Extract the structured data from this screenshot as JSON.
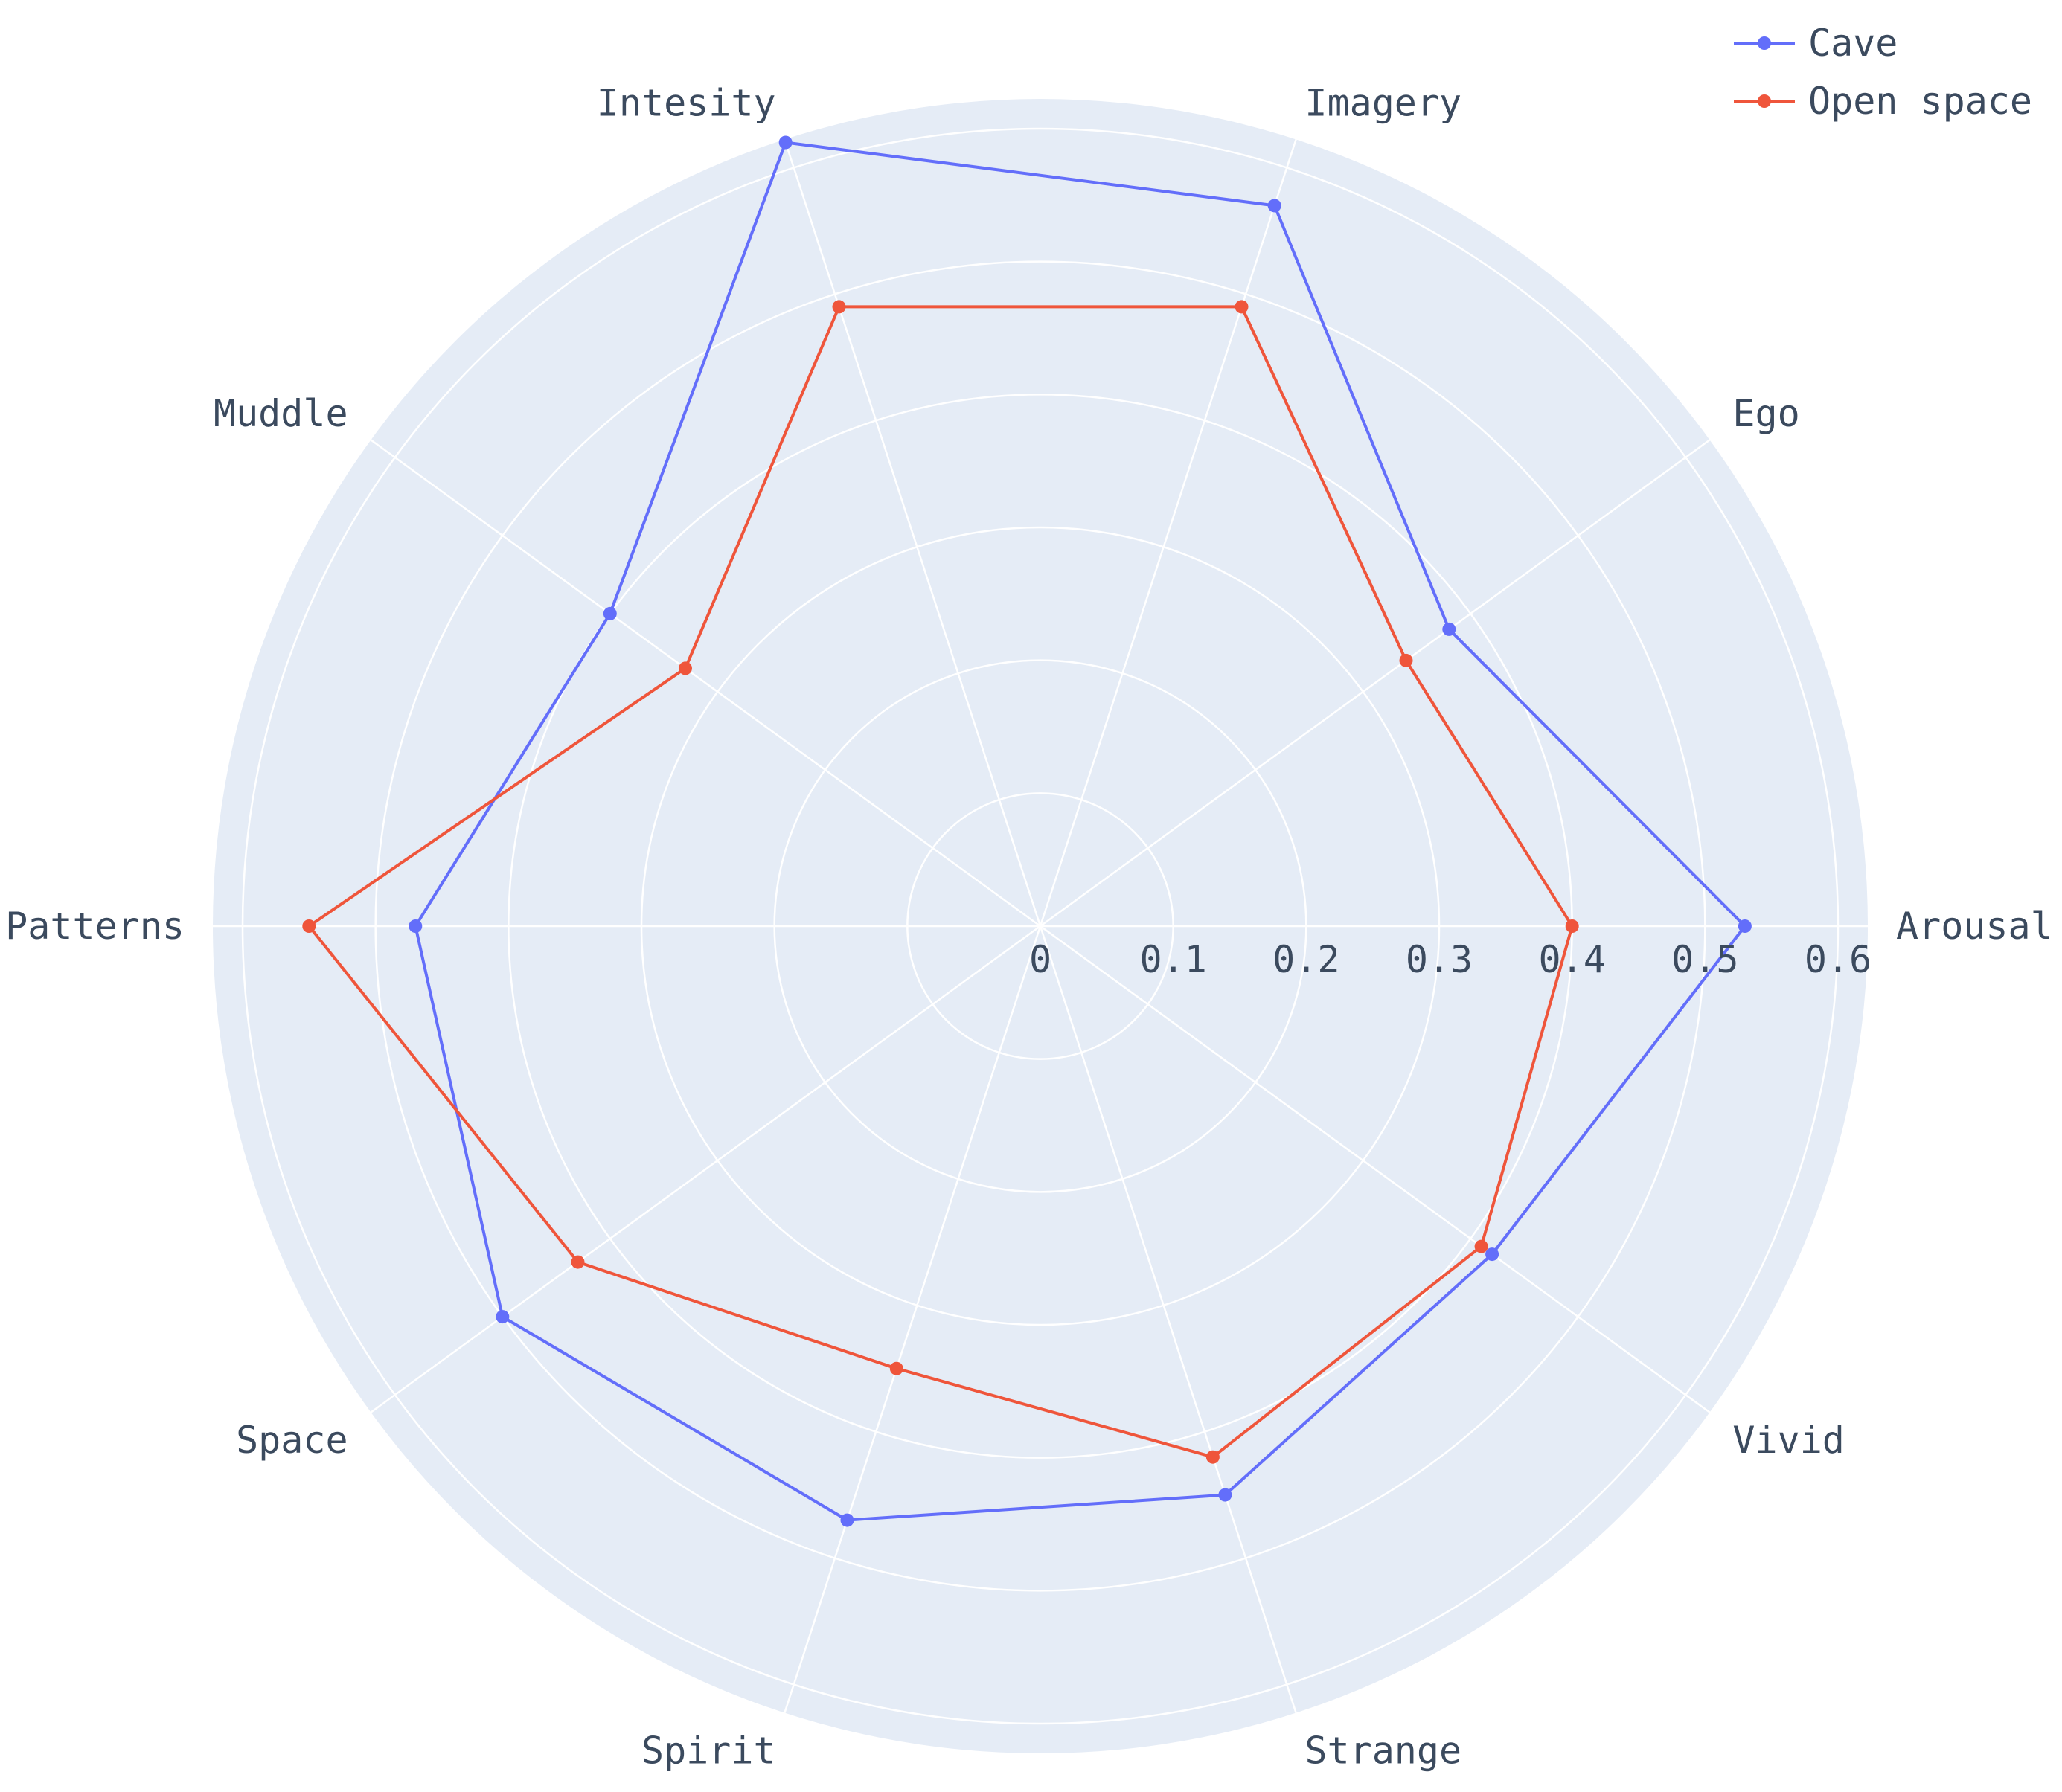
{
  "chart_data": {
    "type": "radar",
    "categories": [
      "Arousal",
      "Ego",
      "Imagery",
      "Intesity",
      "Muddle",
      "Patterns",
      "Space",
      "Spirit",
      "Strange",
      "Vivid"
    ],
    "series": [
      {
        "name": "Cave",
        "color": "#636efa",
        "values": [
          0.53,
          0.38,
          0.57,
          0.62,
          0.4,
          0.47,
          0.5,
          0.47,
          0.45,
          0.42
        ]
      },
      {
        "name": "Open space",
        "color": "#ef553b",
        "values": [
          0.4,
          0.34,
          0.49,
          0.49,
          0.33,
          0.55,
          0.43,
          0.35,
          0.42,
          0.41
        ]
      }
    ],
    "radial_ticks": [
      "0",
      "0.1",
      "0.2",
      "0.3",
      "0.4",
      "0.5",
      "0.6"
    ],
    "rlim": [
      0,
      0.6
    ],
    "polar_background": "#e5ecf6",
    "grid_color": "#ffffff",
    "legend_position": "top-right"
  }
}
